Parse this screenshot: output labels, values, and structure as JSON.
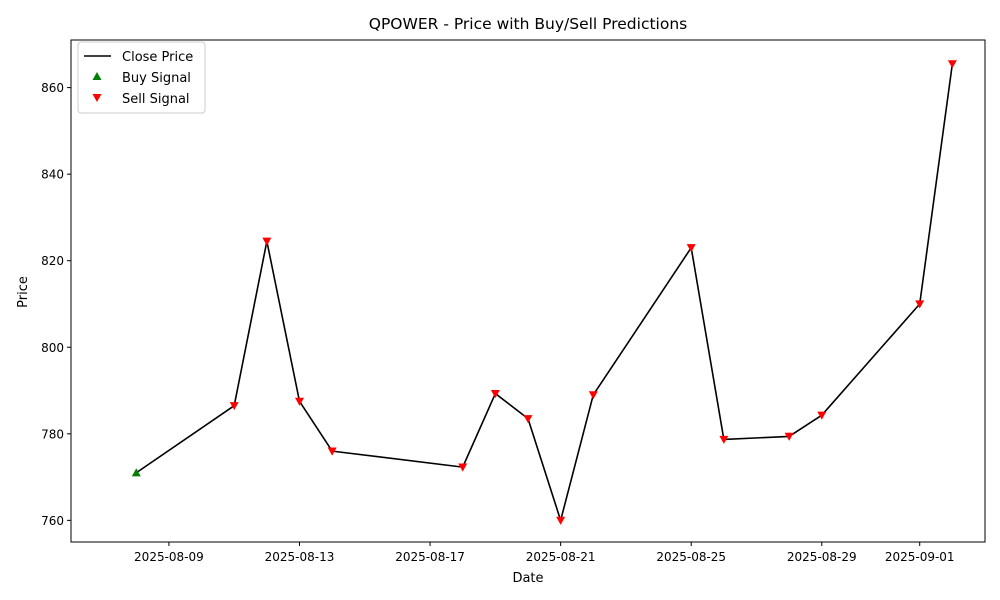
{
  "chart_data": {
    "type": "line",
    "title": "QPOWER - Price with Buy/Sell Predictions",
    "xlabel": "Date",
    "ylabel": "Price",
    "x_type": "date",
    "xlim": [
      "2025-08-06",
      "2025-09-03"
    ],
    "ylim": [
      755,
      871
    ],
    "x_ticks": [
      "2025-08-09",
      "2025-08-13",
      "2025-08-17",
      "2025-08-21",
      "2025-08-25",
      "2025-08-29",
      "2025-09-01"
    ],
    "y_ticks": [
      760,
      780,
      800,
      820,
      840,
      860
    ],
    "grid": false,
    "legend_position": "top-left",
    "series": [
      {
        "name": "Close Price",
        "kind": "line",
        "color": "#000000",
        "points": [
          {
            "x": "2025-08-08",
            "y": 771
          },
          {
            "x": "2025-08-11",
            "y": 786.5
          },
          {
            "x": "2025-08-12",
            "y": 824.5
          },
          {
            "x": "2025-08-13",
            "y": 787.5
          },
          {
            "x": "2025-08-14",
            "y": 776
          },
          {
            "x": "2025-08-18",
            "y": 772.3
          },
          {
            "x": "2025-08-19",
            "y": 789.3
          },
          {
            "x": "2025-08-20",
            "y": 783.5
          },
          {
            "x": "2025-08-21",
            "y": 760
          },
          {
            "x": "2025-08-22",
            "y": 789
          },
          {
            "x": "2025-08-25",
            "y": 823
          },
          {
            "x": "2025-08-26",
            "y": 778.7
          },
          {
            "x": "2025-08-28",
            "y": 779.4
          },
          {
            "x": "2025-08-29",
            "y": 784.3
          },
          {
            "x": "2025-09-01",
            "y": 810
          },
          {
            "x": "2025-09-02",
            "y": 865.5
          }
        ]
      },
      {
        "name": "Buy Signal",
        "kind": "marker",
        "marker": "triangle-up",
        "color": "#008000",
        "points": [
          {
            "x": "2025-08-08",
            "y": 771
          }
        ]
      },
      {
        "name": "Sell Signal",
        "kind": "marker",
        "marker": "triangle-down",
        "color": "#ff0000",
        "points": [
          {
            "x": "2025-08-11",
            "y": 786.5
          },
          {
            "x": "2025-08-12",
            "y": 824.5
          },
          {
            "x": "2025-08-13",
            "y": 787.5
          },
          {
            "x": "2025-08-14",
            "y": 776
          },
          {
            "x": "2025-08-18",
            "y": 772.3
          },
          {
            "x": "2025-08-19",
            "y": 789.3
          },
          {
            "x": "2025-08-20",
            "y": 783.5
          },
          {
            "x": "2025-08-21",
            "y": 760
          },
          {
            "x": "2025-08-22",
            "y": 789
          },
          {
            "x": "2025-08-25",
            "y": 823
          },
          {
            "x": "2025-08-26",
            "y": 778.7
          },
          {
            "x": "2025-08-28",
            "y": 779.4
          },
          {
            "x": "2025-08-29",
            "y": 784.3
          },
          {
            "x": "2025-09-01",
            "y": 810
          },
          {
            "x": "2025-09-02",
            "y": 865.5
          }
        ]
      }
    ]
  }
}
